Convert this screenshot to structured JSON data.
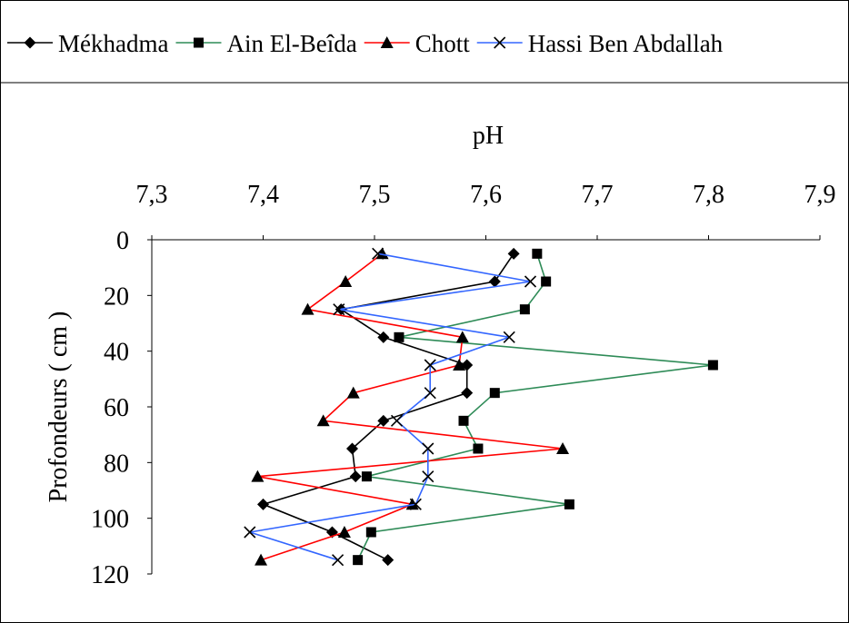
{
  "chart_data": {
    "type": "line",
    "x_axis_title": "pH",
    "y_axis_title": "Profondeurs ( cm )",
    "xlim": [
      7.3,
      7.9
    ],
    "ylim": [
      0,
      120
    ],
    "y_reversed": true,
    "x_axis_position": "top",
    "x_ticks": [
      7.3,
      7.4,
      7.5,
      7.6,
      7.7,
      7.8,
      7.9
    ],
    "x_tick_labels": [
      "7,3",
      "7,4",
      "7,5",
      "7,6",
      "7,7",
      "7,8",
      "7,9"
    ],
    "y_ticks": [
      0,
      20,
      40,
      60,
      80,
      100,
      120
    ],
    "y_tick_labels": [
      "0",
      "20",
      "40",
      "60",
      "80",
      "100",
      "120"
    ],
    "grid": false,
    "legend_position": "top",
    "series": [
      {
        "name": "Mékhadma",
        "color": "#000000",
        "marker": "diamond",
        "points": [
          [
            7.625,
            5
          ],
          [
            7.608,
            15
          ],
          [
            7.47,
            25
          ],
          [
            7.508,
            35
          ],
          [
            7.583,
            45
          ],
          [
            7.583,
            55
          ],
          [
            7.508,
            65
          ],
          [
            7.48,
            75
          ],
          [
            7.483,
            85
          ],
          [
            7.4,
            95
          ],
          [
            7.462,
            105
          ],
          [
            7.512,
            115
          ]
        ]
      },
      {
        "name": "Ain El-Beîda",
        "color": "#2e8b57",
        "marker": "square",
        "points": [
          [
            7.646,
            5
          ],
          [
            7.654,
            15
          ],
          [
            7.635,
            25
          ],
          [
            7.522,
            35
          ],
          [
            7.804,
            45
          ],
          [
            7.608,
            55
          ],
          [
            7.58,
            65
          ],
          [
            7.593,
            75
          ],
          [
            7.493,
            85
          ],
          [
            7.675,
            95
          ],
          [
            7.497,
            105
          ],
          [
            7.485,
            115
          ]
        ]
      },
      {
        "name": "Chott",
        "color": "#ff0000",
        "marker": "triangle",
        "points": [
          [
            7.507,
            5
          ],
          [
            7.474,
            15
          ],
          [
            7.44,
            25
          ],
          [
            7.579,
            35
          ],
          [
            7.576,
            45
          ],
          [
            7.481,
            55
          ],
          [
            7.454,
            65
          ],
          [
            7.669,
            75
          ],
          [
            7.395,
            85
          ],
          [
            7.534,
            95
          ],
          [
            7.473,
            105
          ],
          [
            7.398,
            115
          ]
        ]
      },
      {
        "name": "Hassi Ben Abdallah",
        "color": "#3366ff",
        "marker": "x",
        "points": [
          [
            7.503,
            5
          ],
          [
            7.64,
            15
          ],
          [
            7.468,
            25
          ],
          [
            7.621,
            35
          ],
          [
            7.55,
            45
          ],
          [
            7.55,
            55
          ],
          [
            7.52,
            65
          ],
          [
            7.548,
            75
          ],
          [
            7.548,
            85
          ],
          [
            7.537,
            95
          ],
          [
            7.388,
            105
          ],
          [
            7.467,
            115
          ]
        ]
      }
    ]
  }
}
